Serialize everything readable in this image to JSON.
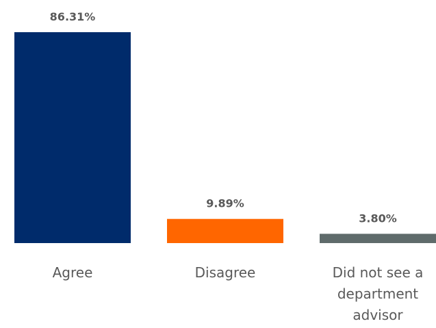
{
  "chart_data": {
    "type": "bar",
    "categories": [
      "Agree",
      "Disagree",
      "Did not see a department advisor"
    ],
    "category_lines": [
      [
        "Agree"
      ],
      [
        "Disagree"
      ],
      [
        "Did not see a",
        "department",
        "advisor"
      ]
    ],
    "values": [
      86.31,
      9.89,
      3.8
    ],
    "value_labels": [
      "86.31%",
      "9.89%",
      "3.80%"
    ],
    "colors": [
      "#002b6b",
      "#ff6600",
      "#5f6b6b"
    ],
    "title": "",
    "xlabel": "",
    "ylabel": "",
    "ylim": [
      0,
      86.31
    ],
    "grid": false,
    "legend": "none"
  }
}
